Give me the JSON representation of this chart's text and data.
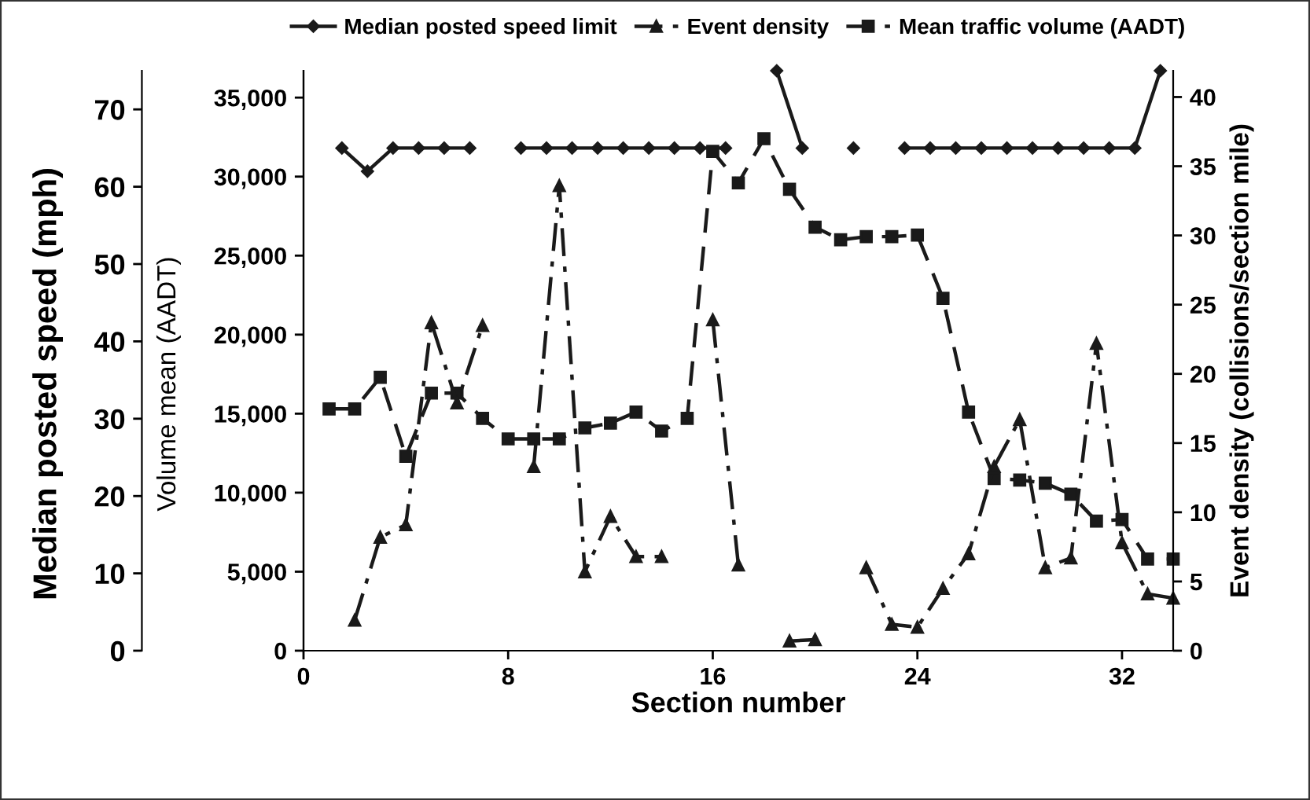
{
  "chart_data": {
    "type": "line",
    "xlabel": "Section number",
    "ylabel": "Volume mean (AADT)",
    "y2label": "Event density (collisions/section mile)",
    "y3label": "Median posted speed (mph)",
    "xlim": [
      0,
      34
    ],
    "xticks": [
      0,
      8,
      16,
      24,
      32
    ],
    "ylim": [
      0,
      36700
    ],
    "yticks": [
      0,
      {
        "value": 5000,
        "label": "5,000"
      },
      {
        "value": 10000,
        "label": "10,000"
      },
      {
        "value": 15000,
        "label": "15,000"
      },
      {
        "value": 20000,
        "label": "20,000"
      },
      {
        "value": 25000,
        "label": "25,000"
      },
      {
        "value": 30000,
        "label": "30,000"
      },
      {
        "value": 35000,
        "label": "35,000"
      }
    ],
    "y2lim": [
      0,
      41.9
    ],
    "y2ticks": [
      0,
      5,
      10,
      15,
      20,
      25,
      30,
      35,
      40
    ],
    "y3lim": [
      0,
      75
    ],
    "y3ticks": [
      0,
      10,
      20,
      30,
      40,
      50,
      60,
      70
    ],
    "legend": "top",
    "grid": false,
    "series": [
      {
        "name": "Median posted speed limit",
        "color": "#1a1a1a",
        "axis": "y3",
        "marker": "diamond",
        "line_style": "solid",
        "x": [
          1.5,
          2.5,
          3.5,
          4.5,
          5.5,
          6.5,
          7.5,
          8.5,
          9.5,
          10.5,
          11.5,
          12.5,
          13.5,
          14.5,
          15.5,
          16.5,
          17.5,
          18.5,
          19.5,
          20.5,
          21.5,
          22.5,
          23.5,
          24.5,
          25.5,
          26.5,
          27.5,
          28.5,
          29.5,
          30.5,
          31.5,
          32.5,
          33.5
        ],
        "values": [
          65,
          62,
          65,
          65,
          65,
          65,
          null,
          65,
          65,
          65,
          65,
          65,
          65,
          65,
          65,
          65,
          null,
          75,
          65,
          null,
          65,
          null,
          65,
          65,
          65,
          65,
          65,
          65,
          65,
          65,
          65,
          65,
          75
        ]
      },
      {
        "name": "Event density",
        "color": "#1a1a1a",
        "axis": "y2",
        "marker": "triangle",
        "line_style": "dashdot",
        "x": [
          2,
          3,
          4,
          5,
          6,
          7,
          8,
          9,
          10,
          11,
          12,
          13,
          14,
          15,
          16,
          17,
          18,
          19,
          20,
          21,
          22,
          23,
          24,
          25,
          26,
          27,
          28,
          29,
          30,
          31,
          32,
          33,
          34
        ],
        "values": [
          2.2,
          8.2,
          9.1,
          23.7,
          17.9,
          23.5,
          null,
          13.3,
          33.6,
          5.7,
          9.7,
          6.8,
          6.8,
          null,
          23.9,
          6.2,
          null,
          0.7,
          0.8,
          null,
          6.0,
          1.9,
          1.7,
          4.5,
          7.0,
          13.3,
          16.7,
          6.0,
          6.7,
          22.2,
          7.8,
          4.1,
          3.8
        ]
      },
      {
        "name": "Mean traffic volume (AADT)",
        "color": "#1a1a1a",
        "axis": "y",
        "marker": "square",
        "line_style": "dashed",
        "x": [
          1,
          2,
          3,
          4,
          5,
          6,
          7,
          8,
          9,
          10,
          11,
          12,
          13,
          14,
          15,
          16,
          17,
          18,
          19,
          20,
          21,
          22,
          23,
          24,
          25,
          26,
          27,
          28,
          29,
          30,
          31,
          32,
          33,
          34
        ],
        "values": [
          15300,
          15300,
          17300,
          12300,
          16300,
          16300,
          14700,
          13400,
          13400,
          13400,
          14100,
          14400,
          15100,
          13900,
          14700,
          31600,
          29600,
          32400,
          29200,
          26800,
          26000,
          26200,
          26200,
          26300,
          22300,
          15100,
          10900,
          10800,
          10600,
          9900,
          8200,
          8300,
          5800,
          5800
        ]
      }
    ]
  }
}
